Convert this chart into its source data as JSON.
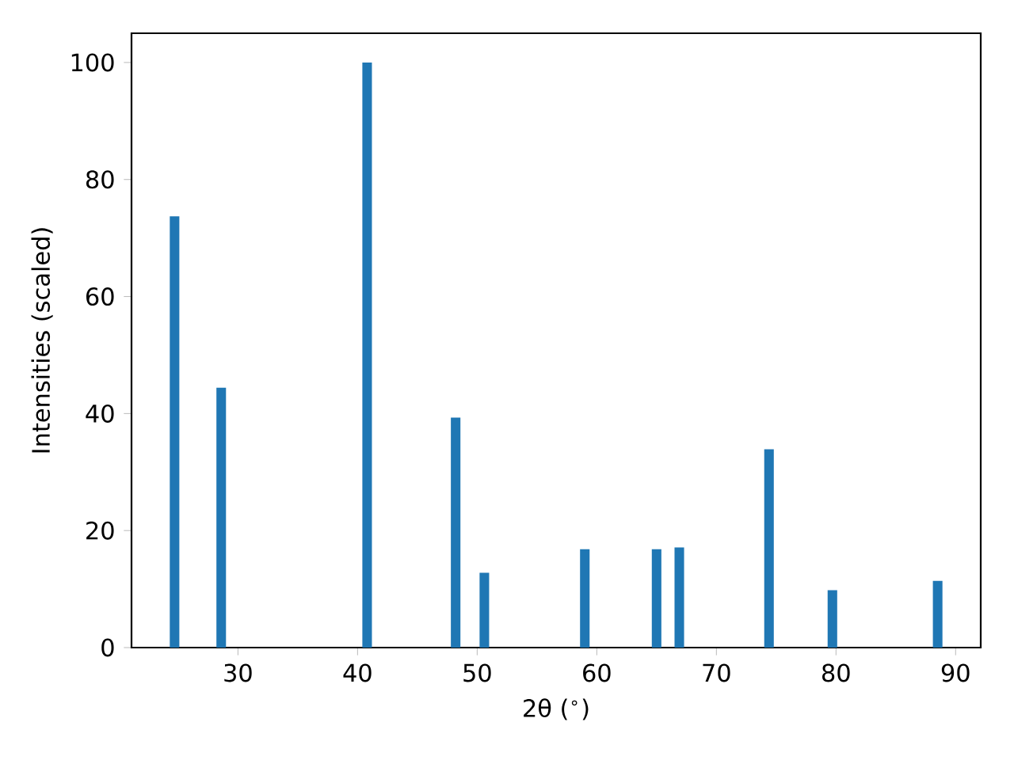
{
  "chart_data": {
    "type": "bar",
    "xlabel": "2θ ($^{∘}$)",
    "ylabel": "Intensities (scaled)",
    "x": [
      24.7,
      28.6,
      40.8,
      48.2,
      50.6,
      59.0,
      65.0,
      66.9,
      74.4,
      79.7,
      88.5
    ],
    "values": [
      73.7,
      44.4,
      100,
      39.3,
      12.8,
      16.8,
      16.8,
      17.1,
      33.9,
      9.8,
      11.4
    ],
    "color": "#1f77b4",
    "xlim": [
      21.1,
      92.1
    ],
    "ylim": [
      0,
      105
    ],
    "xticks": [
      30,
      40,
      50,
      60,
      70,
      80,
      90
    ],
    "yticks": [
      0,
      20,
      40,
      60,
      80,
      100
    ],
    "grid": false
  }
}
